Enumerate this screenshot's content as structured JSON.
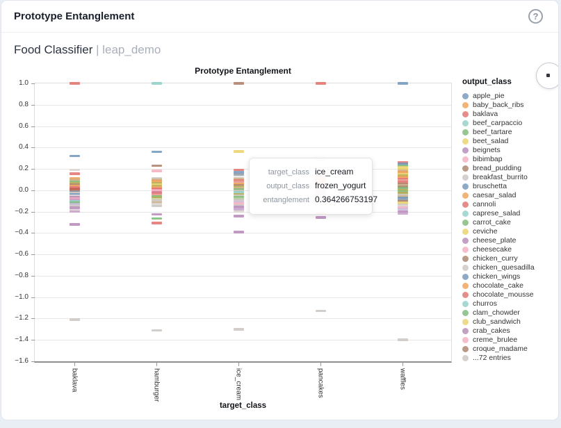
{
  "header": {
    "title": "Prototype Entanglement",
    "help_label": "?"
  },
  "subheader": {
    "model_name": "Food Classifier",
    "separator": " | ",
    "project_name": "leap_demo"
  },
  "chart_data": {
    "type": "scatter",
    "title": "Prototype Entanglement",
    "xlabel": "target_class",
    "legend_title": "output_class",
    "legend_position": "right",
    "grid": true,
    "categories": [
      "baklava",
      "hamburger",
      "ice_cream",
      "pancakes",
      "waffles"
    ],
    "ylim": [
      -1.6,
      1.0
    ],
    "yticks": {
      "labels": [
        "1.0",
        "0.8",
        "0.6",
        "0.4",
        "0.2",
        "0.0",
        "−0.2",
        "−0.4",
        "−0.6",
        "−0.8",
        "−1.0",
        "−1.2",
        "−1.4",
        "−1.6"
      ],
      "values": [
        1.0,
        0.8,
        0.6,
        0.4,
        0.2,
        0.0,
        -0.2,
        -0.4,
        -0.6,
        -0.8,
        -1.0,
        -1.2,
        -1.4,
        -1.6
      ]
    },
    "palette": {
      "blue": "#7096bb",
      "orange": "#f0a055",
      "red": "#e0716d",
      "teal": "#90cfc7",
      "green": "#7cb977",
      "yellow": "#ead169",
      "purple": "#b588b7",
      "pink": "#f5adbe",
      "brown": "#aa8069",
      "gray": "#cdc6c1",
      "olive": "#b5aa52",
      "tan": "#ccae85",
      "slate": "#8e9ba7",
      "lightgray": "#d9d3cf",
      "mauve": "#c79fc8",
      "salmon": "#e89d94",
      "magenta": "#d4738f",
      "cream": "#ddd8b4",
      "lavender": "#cab9d9",
      "lightgreen": "#a5cd91",
      "darkred": "#c25c57",
      "rust": "#bd6c52"
    },
    "legend": [
      {
        "label": "apple_pie",
        "color": "blue"
      },
      {
        "label": "baby_back_ribs",
        "color": "orange"
      },
      {
        "label": "baklava",
        "color": "red"
      },
      {
        "label": "beef_carpaccio",
        "color": "teal"
      },
      {
        "label": "beef_tartare",
        "color": "green"
      },
      {
        "label": "beet_salad",
        "color": "yellow"
      },
      {
        "label": "beignets",
        "color": "purple"
      },
      {
        "label": "bibimbap",
        "color": "pink"
      },
      {
        "label": "bread_pudding",
        "color": "brown"
      },
      {
        "label": "breakfast_burrito",
        "color": "gray"
      },
      {
        "label": "bruschetta",
        "color": "blue"
      },
      {
        "label": "caesar_salad",
        "color": "orange"
      },
      {
        "label": "cannoli",
        "color": "red"
      },
      {
        "label": "caprese_salad",
        "color": "teal"
      },
      {
        "label": "carrot_cake",
        "color": "green"
      },
      {
        "label": "ceviche",
        "color": "yellow"
      },
      {
        "label": "cheese_plate",
        "color": "purple"
      },
      {
        "label": "cheesecake",
        "color": "pink"
      },
      {
        "label": "chicken_curry",
        "color": "brown"
      },
      {
        "label": "chicken_quesadilla",
        "color": "gray"
      },
      {
        "label": "chicken_wings",
        "color": "blue"
      },
      {
        "label": "chocolate_cake",
        "color": "orange"
      },
      {
        "label": "chocolate_mousse",
        "color": "red"
      },
      {
        "label": "churros",
        "color": "teal"
      },
      {
        "label": "clam_chowder",
        "color": "green"
      },
      {
        "label": "club_sandwich",
        "color": "yellow"
      },
      {
        "label": "crab_cakes",
        "color": "purple"
      },
      {
        "label": "creme_brulee",
        "color": "pink"
      },
      {
        "label": "croque_madame",
        "color": "brown"
      },
      {
        "label": "...72 entries",
        "color": "gray"
      }
    ],
    "series": [
      {
        "target": "baklava",
        "points": [
          [
            1.0,
            "red"
          ],
          [
            0.32,
            "blue"
          ],
          [
            0.19,
            "lightgray"
          ],
          [
            0.155,
            "red"
          ],
          [
            0.11,
            "orange"
          ],
          [
            0.095,
            "tan"
          ],
          [
            0.08,
            "green"
          ],
          [
            0.068,
            "olive"
          ],
          [
            0.055,
            "brown"
          ],
          [
            0.04,
            "orange"
          ],
          [
            0.025,
            "red"
          ],
          [
            0.012,
            "darkred"
          ],
          [
            0.0,
            "rust"
          ],
          [
            -0.012,
            "slate"
          ],
          [
            -0.025,
            "gray"
          ],
          [
            -0.038,
            "blue"
          ],
          [
            -0.052,
            "lightgray"
          ],
          [
            -0.065,
            "purple"
          ],
          [
            -0.078,
            "pink"
          ],
          [
            -0.092,
            "mauve"
          ],
          [
            -0.105,
            "teal"
          ],
          [
            -0.118,
            "green"
          ],
          [
            -0.132,
            "lavender"
          ],
          [
            -0.148,
            "gray"
          ],
          [
            -0.165,
            "purple"
          ],
          [
            -0.185,
            "lightgray"
          ],
          [
            -0.2,
            "mauve"
          ],
          [
            -0.32,
            "purple"
          ],
          [
            -1.21,
            "gray"
          ]
        ]
      },
      {
        "target": "hamburger",
        "points": [
          [
            1.0,
            "teal"
          ],
          [
            0.36,
            "blue"
          ],
          [
            0.23,
            "brown"
          ],
          [
            0.18,
            "pink"
          ],
          [
            0.11,
            "gray"
          ],
          [
            0.096,
            "tan"
          ],
          [
            0.082,
            "orange"
          ],
          [
            0.068,
            "olive"
          ],
          [
            0.054,
            "yellow"
          ],
          [
            0.04,
            "olive"
          ],
          [
            0.026,
            "orange"
          ],
          [
            0.012,
            "red"
          ],
          [
            -0.002,
            "pink"
          ],
          [
            -0.016,
            "magenta"
          ],
          [
            -0.03,
            "red"
          ],
          [
            -0.044,
            "salmon"
          ],
          [
            -0.058,
            "green"
          ],
          [
            -0.072,
            "olive"
          ],
          [
            -0.086,
            "cream"
          ],
          [
            -0.1,
            "gray"
          ],
          [
            -0.115,
            "tan"
          ],
          [
            -0.13,
            "lightgray"
          ],
          [
            -0.148,
            "gray"
          ],
          [
            -0.225,
            "purple"
          ],
          [
            -0.265,
            "green"
          ],
          [
            -0.305,
            "red"
          ],
          [
            -1.31,
            "gray"
          ]
        ]
      },
      {
        "target": "ice_cream",
        "points": [
          [
            1.0,
            "brown"
          ],
          [
            0.364,
            "yellow"
          ],
          [
            0.19,
            "red"
          ],
          [
            0.168,
            "blue"
          ],
          [
            0.15,
            "slate"
          ],
          [
            0.12,
            "lightgray"
          ],
          [
            0.105,
            "tan"
          ],
          [
            0.09,
            "red"
          ],
          [
            0.076,
            "salmon"
          ],
          [
            0.062,
            "orange"
          ],
          [
            0.048,
            "brown"
          ],
          [
            0.034,
            "olive"
          ],
          [
            0.02,
            "tan"
          ],
          [
            0.006,
            "green"
          ],
          [
            -0.008,
            "gray"
          ],
          [
            -0.022,
            "teal"
          ],
          [
            -0.036,
            "olive"
          ],
          [
            -0.05,
            "gray"
          ],
          [
            -0.064,
            "green"
          ],
          [
            -0.078,
            "lightgreen"
          ],
          [
            -0.092,
            "gray"
          ],
          [
            -0.108,
            "lavender"
          ],
          [
            -0.124,
            "pink"
          ],
          [
            -0.14,
            "gray"
          ],
          [
            -0.158,
            "purple"
          ],
          [
            -0.178,
            "mauve"
          ],
          [
            -0.2,
            "lightgray"
          ],
          [
            -0.24,
            "purple"
          ],
          [
            -0.39,
            "purple"
          ],
          [
            -1.3,
            "gray"
          ]
        ]
      },
      {
        "target": "pancakes",
        "points": [
          [
            1.0,
            "red"
          ],
          [
            0.29,
            "pink"
          ],
          [
            0.14,
            "red"
          ],
          [
            0.12,
            "pink"
          ],
          [
            0.105,
            "tan"
          ],
          [
            0.09,
            "orange"
          ],
          [
            0.075,
            "red"
          ],
          [
            0.06,
            "pink"
          ],
          [
            0.045,
            "gray"
          ],
          [
            0.03,
            "tan"
          ],
          [
            0.015,
            "red"
          ],
          [
            0.0,
            "pink"
          ],
          [
            -0.015,
            "gray"
          ],
          [
            -0.03,
            "mauve"
          ],
          [
            -0.045,
            "pink"
          ],
          [
            -0.06,
            "lightgray"
          ],
          [
            -0.075,
            "salmon"
          ],
          [
            -0.09,
            "gray"
          ],
          [
            -0.105,
            "pink"
          ],
          [
            -0.125,
            "lightgray"
          ],
          [
            -0.22,
            "red"
          ],
          [
            -0.255,
            "purple"
          ],
          [
            -1.13,
            "gray"
          ]
        ]
      },
      {
        "target": "waffles",
        "points": [
          [
            1.0,
            "blue"
          ],
          [
            0.26,
            "red"
          ],
          [
            0.245,
            "blue"
          ],
          [
            0.23,
            "green"
          ],
          [
            0.212,
            "yellow"
          ],
          [
            0.197,
            "yellow"
          ],
          [
            0.182,
            "tan"
          ],
          [
            0.167,
            "orange"
          ],
          [
            0.152,
            "yellow"
          ],
          [
            0.137,
            "olive"
          ],
          [
            0.122,
            "orange"
          ],
          [
            0.107,
            "red"
          ],
          [
            0.092,
            "salmon"
          ],
          [
            0.077,
            "red"
          ],
          [
            0.062,
            "brown"
          ],
          [
            0.047,
            "tan"
          ],
          [
            0.032,
            "brown"
          ],
          [
            0.017,
            "green"
          ],
          [
            0.002,
            "olive"
          ],
          [
            -0.013,
            "green"
          ],
          [
            -0.028,
            "olive"
          ],
          [
            -0.043,
            "gray"
          ],
          [
            -0.058,
            "tan"
          ],
          [
            -0.073,
            "blue"
          ],
          [
            -0.088,
            "slate"
          ],
          [
            -0.103,
            "brown"
          ],
          [
            -0.118,
            "yellow"
          ],
          [
            -0.133,
            "gray"
          ],
          [
            -0.148,
            "lightgray"
          ],
          [
            -0.163,
            "pink"
          ],
          [
            -0.178,
            "lavender"
          ],
          [
            -0.198,
            "purple"
          ],
          [
            -0.218,
            "mauve"
          ],
          [
            -1.4,
            "gray"
          ]
        ]
      }
    ],
    "tooltip": {
      "rows": [
        {
          "label": "target_class",
          "value": "ice_cream"
        },
        {
          "label": "output_class",
          "value": "frozen_yogurt"
        },
        {
          "label": "entanglement",
          "value": "0.364266753197"
        }
      ]
    }
  }
}
